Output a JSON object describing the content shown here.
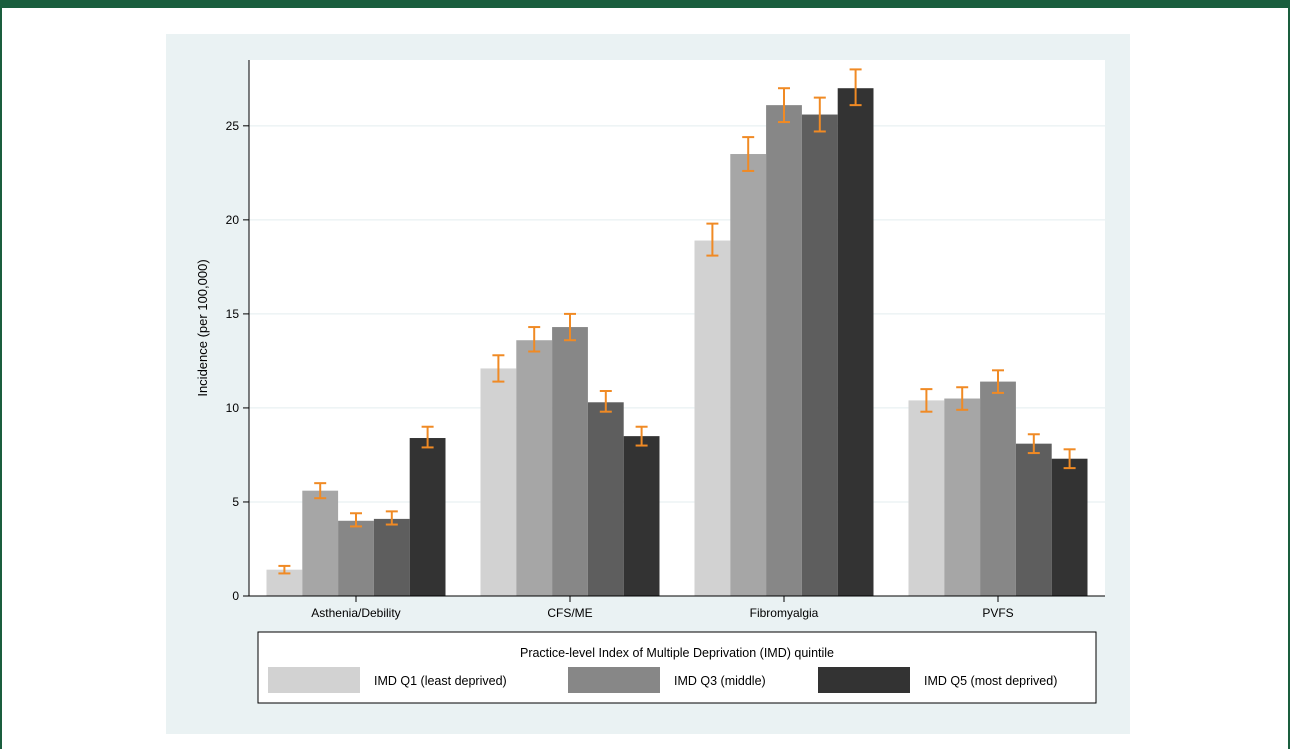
{
  "chart_data": {
    "type": "bar",
    "title": "",
    "xlabel": "",
    "ylabel": "Incidence (per 100,000)",
    "ylim": [
      0,
      28.5
    ],
    "yticks": [
      0,
      5,
      10,
      15,
      20,
      25
    ],
    "grid": true,
    "categories": [
      "Asthenia/Debility",
      "CFS/ME",
      "Fibromyalgia",
      "PVFS"
    ],
    "series": [
      {
        "name": "IMD Q1 (least deprived)",
        "color": "#d2d2d2",
        "values": [
          1.4,
          12.1,
          18.9,
          10.4
        ],
        "ci_low": [
          1.2,
          11.4,
          18.1,
          9.8
        ],
        "ci_high": [
          1.6,
          12.8,
          19.8,
          11.0
        ]
      },
      {
        "color": "#a6a6a6",
        "values": [
          5.6,
          13.6,
          23.5,
          10.5
        ],
        "ci_low": [
          5.2,
          13.0,
          22.6,
          9.9
        ],
        "ci_high": [
          6.0,
          14.3,
          24.4,
          11.1
        ]
      },
      {
        "name": "IMD Q3 (middle)",
        "color": "#878787",
        "values": [
          4.0,
          14.3,
          26.1,
          11.4
        ],
        "ci_low": [
          3.7,
          13.6,
          25.2,
          10.8
        ],
        "ci_high": [
          4.4,
          15.0,
          27.0,
          12.0
        ]
      },
      {
        "color": "#5e5e5e",
        "values": [
          4.1,
          10.3,
          25.6,
          8.1
        ],
        "ci_low": [
          3.8,
          9.8,
          24.7,
          7.6
        ],
        "ci_high": [
          4.5,
          10.9,
          26.5,
          8.6
        ]
      },
      {
        "name": "IMD Q5 (most deprived)",
        "color": "#333333",
        "values": [
          8.4,
          8.5,
          27.0,
          7.3
        ],
        "ci_low": [
          7.9,
          8.0,
          26.1,
          6.8
        ],
        "ci_high": [
          9.0,
          9.0,
          28.0,
          7.8
        ]
      }
    ],
    "error_bar_color": "#f08a24",
    "legend": {
      "title": "Practice-level Index of Multiple Deprivation (IMD) quintile",
      "placement": "bottom",
      "entries": [
        "IMD Q1 (least deprived)",
        "IMD Q3 (middle)",
        "IMD Q5 (most deprived)"
      ]
    }
  }
}
